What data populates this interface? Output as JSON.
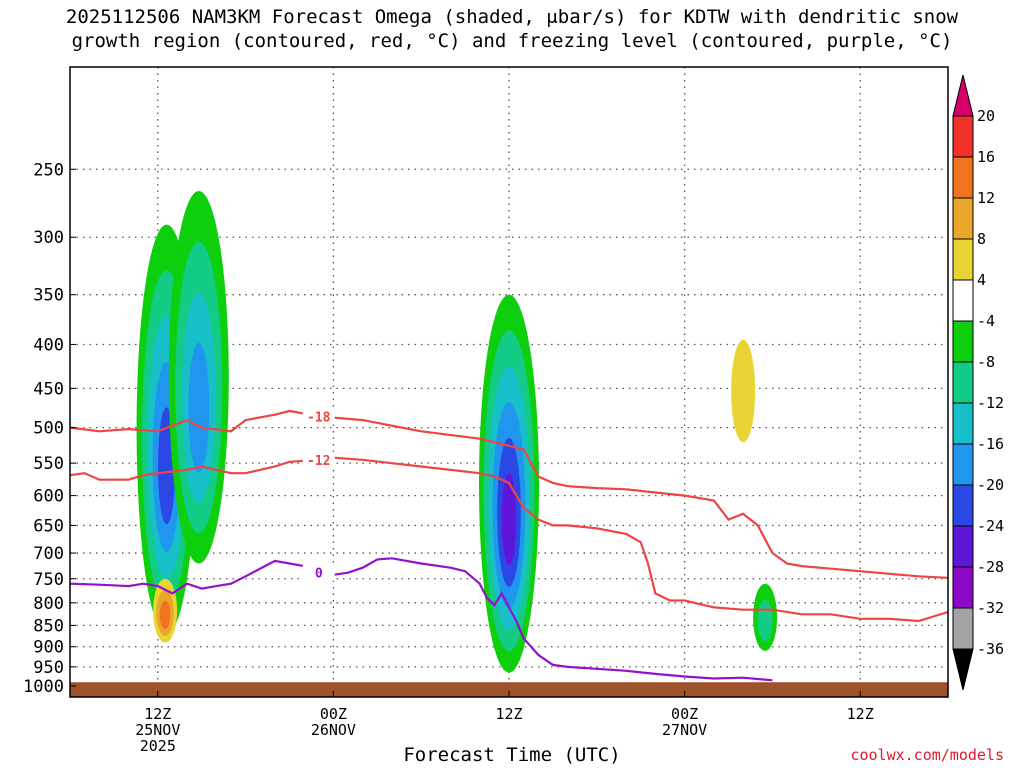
{
  "title_line1": "2025112506 NAM3KM Forecast Omega (shaded, μbar/s) for KDTW with dendritic snow",
  "title_line2": "growth region (contoured, red, °C) and freezing level (contoured, purple, °C)",
  "credit": "coolwx.com/models",
  "chart_data": {
    "type": "heatmap",
    "title": "2025112506 NAM3KM Forecast Omega (shaded, μbar/s) for KDTW with dendritic snow growth region (contoured, red, °C) and freezing level (contoured, purple, °C)",
    "xlabel": "Forecast Time (UTC)",
    "ylabel": "",
    "y_scale": "pressure (hPa, inverted)",
    "xlim_hours": [
      0,
      60
    ],
    "ylim_hPa": [
      1030,
      190
    ],
    "y_ticks": [
      "250",
      "300",
      "350",
      "400",
      "450",
      "500",
      "550",
      "600",
      "650",
      "700",
      "750",
      "800",
      "850",
      "900",
      "950",
      "1000"
    ],
    "x_ticks": [
      {
        "hour": 6,
        "lines": [
          "12Z",
          "25NOV",
          "2025"
        ]
      },
      {
        "hour": 18,
        "lines": [
          "00Z",
          "26NOV"
        ]
      },
      {
        "hour": 30,
        "lines": [
          "12Z"
        ]
      },
      {
        "hour": 42,
        "lines": [
          "00Z",
          "27NOV"
        ]
      },
      {
        "hour": 54,
        "lines": [
          "12Z"
        ]
      }
    ],
    "colorbar": {
      "labels": [
        "20",
        "16",
        "12",
        "8",
        "4",
        "-4",
        "-8",
        "-12",
        "-16",
        "-20",
        "-24",
        "-28",
        "-32",
        "-36"
      ],
      "colors": [
        "#d6006b",
        "#f0312a",
        "#f2731f",
        "#eaa62a",
        "#e8d433",
        "#ffffff",
        "#0dcf0d",
        "#12cc85",
        "#17bfc9",
        "#2196ee",
        "#2c48e4",
        "#5e17d8",
        "#8c08c6",
        "#a3a3a3",
        "#000000"
      ]
    },
    "omega_areas": [
      {
        "hour": 6.6,
        "p_top": 290,
        "p_bot": 870,
        "min_value": -24
      },
      {
        "hour": 8.8,
        "p_top": 265,
        "p_bot": 720,
        "min_value": -20
      },
      {
        "hour": 30.0,
        "p_top": 350,
        "p_bot": 965,
        "min_value": -28
      },
      {
        "hour": 47.5,
        "p_top": 760,
        "p_bot": 910,
        "min_value": -12
      },
      {
        "hour": 6.5,
        "p_top": 750,
        "p_bot": 890,
        "max_value": 16
      },
      {
        "hour": 46.0,
        "p_top": 395,
        "p_bot": 520,
        "max_value": 8
      }
    ],
    "series": [
      {
        "name": "-18 °C isotherm",
        "label": "-18",
        "color": "#ee4444",
        "x": [
          0,
          2,
          4,
          6,
          8,
          9,
          11,
          12,
          14,
          15,
          17,
          20,
          24,
          28,
          29,
          30,
          31,
          32,
          33,
          34,
          36,
          38,
          40,
          42,
          44,
          45,
          46,
          47,
          48,
          49,
          50,
          52,
          54,
          56,
          58,
          60
        ],
        "y": [
          500,
          505,
          502,
          505,
          490,
          500,
          505,
          490,
          483,
          478,
          485,
          490,
          505,
          515,
          520,
          525,
          530,
          570,
          580,
          585,
          588,
          590,
          595,
          600,
          608,
          640,
          630,
          650,
          700,
          720,
          725,
          730,
          735,
          740,
          745,
          748
        ]
      },
      {
        "name": "-12 °C isotherm",
        "label": "-12",
        "color": "#ee4444",
        "x": [
          0,
          1,
          2,
          4,
          5,
          6,
          8,
          9,
          11,
          12,
          14,
          15,
          17,
          18,
          20,
          22,
          24,
          26,
          28,
          29,
          30,
          31,
          32,
          33,
          34,
          36,
          38,
          39,
          39.5,
          40,
          41,
          42,
          44,
          46,
          48,
          50,
          52,
          54,
          56,
          58,
          60
        ],
        "y": [
          568,
          565,
          575,
          575,
          568,
          565,
          560,
          555,
          565,
          565,
          555,
          548,
          545,
          542,
          545,
          550,
          555,
          560,
          565,
          570,
          580,
          620,
          640,
          650,
          650,
          655,
          665,
          680,
          720,
          780,
          795,
          795,
          810,
          815,
          815,
          825,
          825,
          835,
          835,
          840,
          820
        ]
      },
      {
        "name": "0 °C freezing level",
        "label": "0",
        "color": "#9410cf",
        "x": [
          0,
          2,
          4,
          5,
          6,
          7,
          8,
          9,
          10,
          11,
          12,
          14,
          15,
          16,
          17,
          18,
          19,
          20,
          21,
          22,
          24,
          26,
          27,
          28,
          28.5,
          29,
          29.5,
          30,
          30.5,
          31,
          32,
          33,
          34,
          36,
          38,
          40,
          42,
          44,
          46,
          48
        ],
        "y": [
          760,
          762,
          765,
          760,
          765,
          780,
          760,
          770,
          765,
          760,
          745,
          715,
          720,
          725,
          738,
          742,
          738,
          728,
          712,
          710,
          720,
          728,
          735,
          760,
          790,
          805,
          780,
          810,
          840,
          880,
          920,
          945,
          950,
          955,
          960,
          968,
          975,
          980,
          978,
          985
        ]
      }
    ]
  }
}
